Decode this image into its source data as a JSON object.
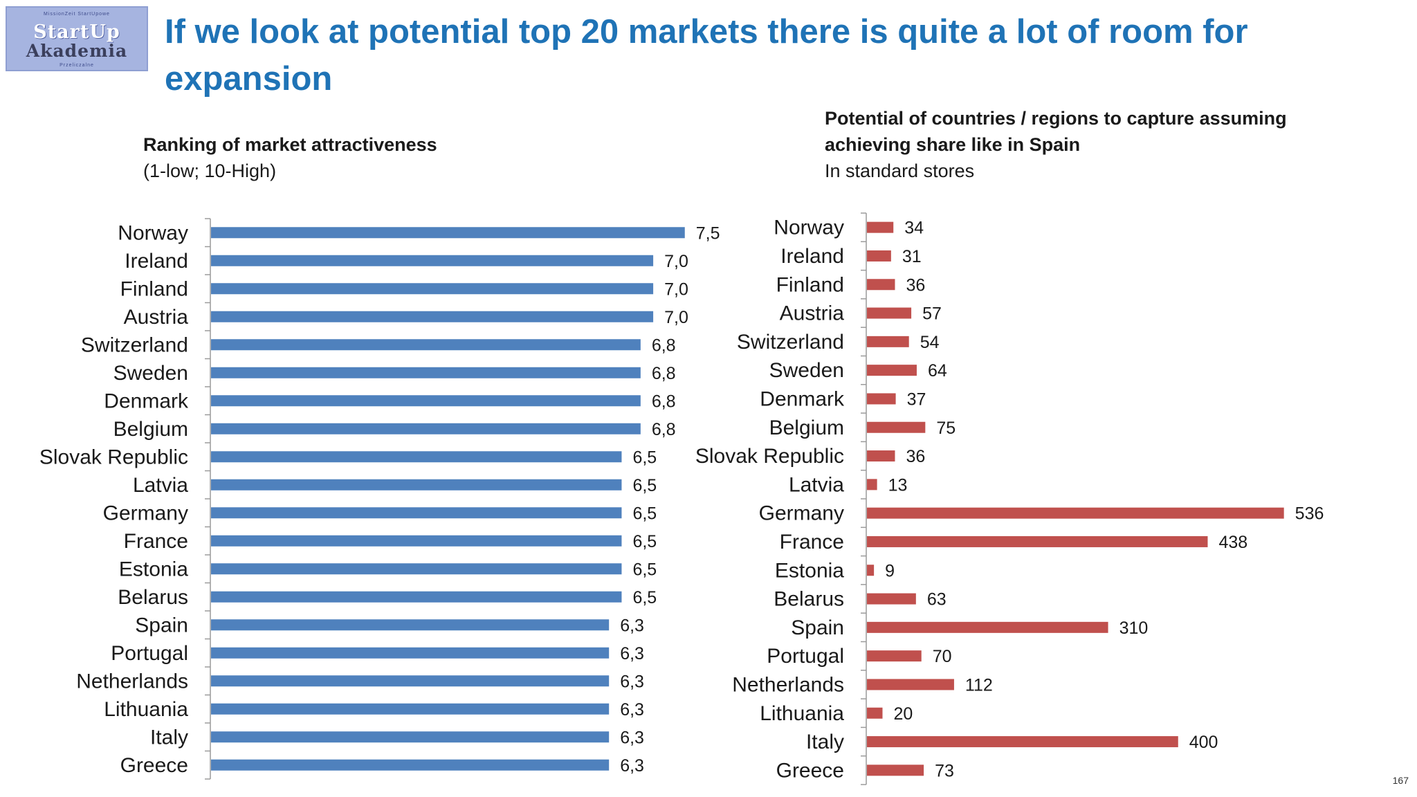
{
  "logo": {
    "top_text": "MissionZeit StartUpowe",
    "line1": "StartUp",
    "line2": "Akademia",
    "bottom_text": "Przeliczalne"
  },
  "title": "If we look at potential top 20 markets there is quite a lot of room for expansion",
  "page_number": "167",
  "colors": {
    "title": "#1f73b6",
    "left_bars": "#4f81bd",
    "right_bars": "#c0504d"
  },
  "chart_data": [
    {
      "type": "bar",
      "orientation": "horizontal",
      "title": "Ranking of market attractiveness",
      "subtitle": "(1-low; 10-High)",
      "categories": [
        "Norway",
        "Ireland",
        "Finland",
        "Austria",
        "Switzerland",
        "Sweden",
        "Denmark",
        "Belgium",
        "Slovak Republic",
        "Latvia",
        "Germany",
        "France",
        "Estonia",
        "Belarus",
        "Spain",
        "Portugal",
        "Netherlands",
        "Lithuania",
        "Italy",
        "Greece"
      ],
      "values": [
        7.5,
        7.0,
        7.0,
        7.0,
        6.8,
        6.8,
        6.8,
        6.8,
        6.5,
        6.5,
        6.5,
        6.5,
        6.5,
        6.5,
        6.3,
        6.3,
        6.3,
        6.3,
        6.3,
        6.3
      ],
      "labels": [
        "7,5",
        "7,0",
        "7,0",
        "7,0",
        "6,8",
        "6,8",
        "6,8",
        "6,8",
        "6,5",
        "6,5",
        "6,5",
        "6,5",
        "6,5",
        "6,5",
        "6,3",
        "6,3",
        "6,3",
        "6,3",
        "6,3",
        "6,3"
      ],
      "grid": false,
      "legend": "none"
    },
    {
      "type": "bar",
      "orientation": "horizontal",
      "title": "Potential of countries / regions to capture assuming achieving share like in Spain",
      "subtitle": "In  standard stores",
      "categories": [
        "Norway",
        "Ireland",
        "Finland",
        "Austria",
        "Switzerland",
        "Sweden",
        "Denmark",
        "Belgium",
        "Slovak Republic",
        "Latvia",
        "Germany",
        "France",
        "Estonia",
        "Belarus",
        "Spain",
        "Portugal",
        "Netherlands",
        "Lithuania",
        "Italy",
        "Greece"
      ],
      "values": [
        34,
        31,
        36,
        57,
        54,
        64,
        37,
        75,
        36,
        13,
        536,
        438,
        9,
        63,
        310,
        70,
        112,
        20,
        400,
        73
      ],
      "labels": [
        "34",
        "31",
        "36",
        "57",
        "54",
        "64",
        "37",
        "75",
        "36",
        "13",
        "536",
        "438",
        "9",
        "63",
        "310",
        "70",
        "112",
        "20",
        "400",
        "73"
      ],
      "grid": false,
      "legend": "none"
    }
  ]
}
